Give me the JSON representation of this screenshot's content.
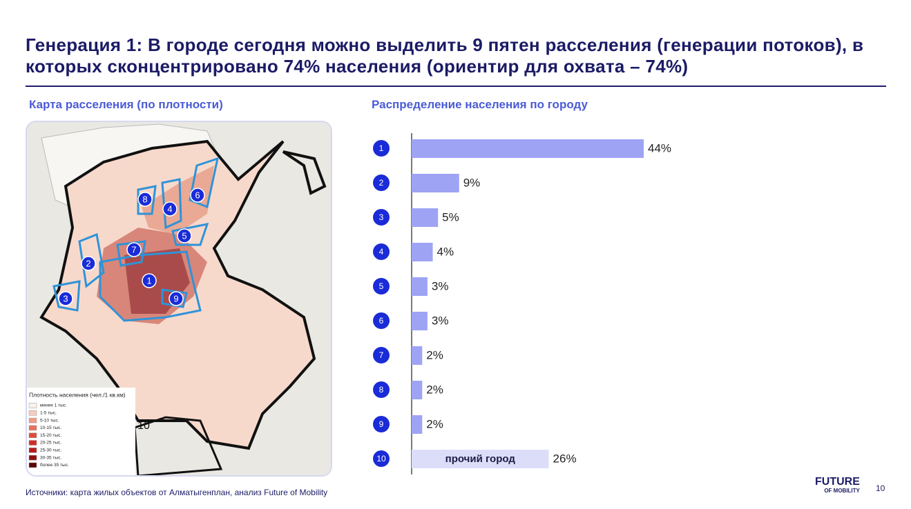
{
  "header": {
    "title": "Генерация 1: В городе сегодня можно выделить 9 пятен расселения (генерации потоков), в которых сконцентрировано 74% населения (ориентир для охвата – 74%)"
  },
  "map": {
    "subtitle": "Карта расселения (по плотности)",
    "markers": [
      "1",
      "2",
      "3",
      "4",
      "5",
      "6",
      "7",
      "8",
      "9",
      "10"
    ],
    "legend": {
      "title": "Плотность населения (чел./1 кв.км)",
      "items": [
        "менее 1 тыс.",
        "1-5 тыс.",
        "5-10 тыс.",
        "10-15 тыс.",
        "15-20 тыс.",
        "20-25 тыс.",
        "25-30 тыс.",
        "30-35 тыс.",
        "более 35 тыс."
      ]
    }
  },
  "chart_data": {
    "type": "bar",
    "orientation": "horizontal",
    "title": "Распределение населения по городу",
    "categories": [
      "1",
      "2",
      "3",
      "4",
      "5",
      "6",
      "7",
      "8",
      "9",
      "10"
    ],
    "values": [
      44,
      9,
      5,
      4,
      3,
      3,
      2,
      2,
      2,
      26
    ],
    "value_labels": [
      "44%",
      "9%",
      "5%",
      "4%",
      "3%",
      "3%",
      "2%",
      "2%",
      "2%",
      "26%"
    ],
    "descriptions": [
      null,
      null,
      null,
      null,
      null,
      null,
      null,
      null,
      null,
      "прочий город"
    ],
    "colors": [
      "#9ea3f4",
      "#9ea3f4",
      "#9ea3f4",
      "#9ea3f4",
      "#9ea3f4",
      "#9ea3f4",
      "#9ea3f4",
      "#9ea3f4",
      "#9ea3f4",
      "#dcdef9"
    ]
  },
  "footer": {
    "source": "Источники: карта жилых объектов от Алматыгенплан, анализ Future of Mobility",
    "logo_top": "FUTURE",
    "logo_bottom": "OF MOBILITY",
    "page": "10"
  }
}
